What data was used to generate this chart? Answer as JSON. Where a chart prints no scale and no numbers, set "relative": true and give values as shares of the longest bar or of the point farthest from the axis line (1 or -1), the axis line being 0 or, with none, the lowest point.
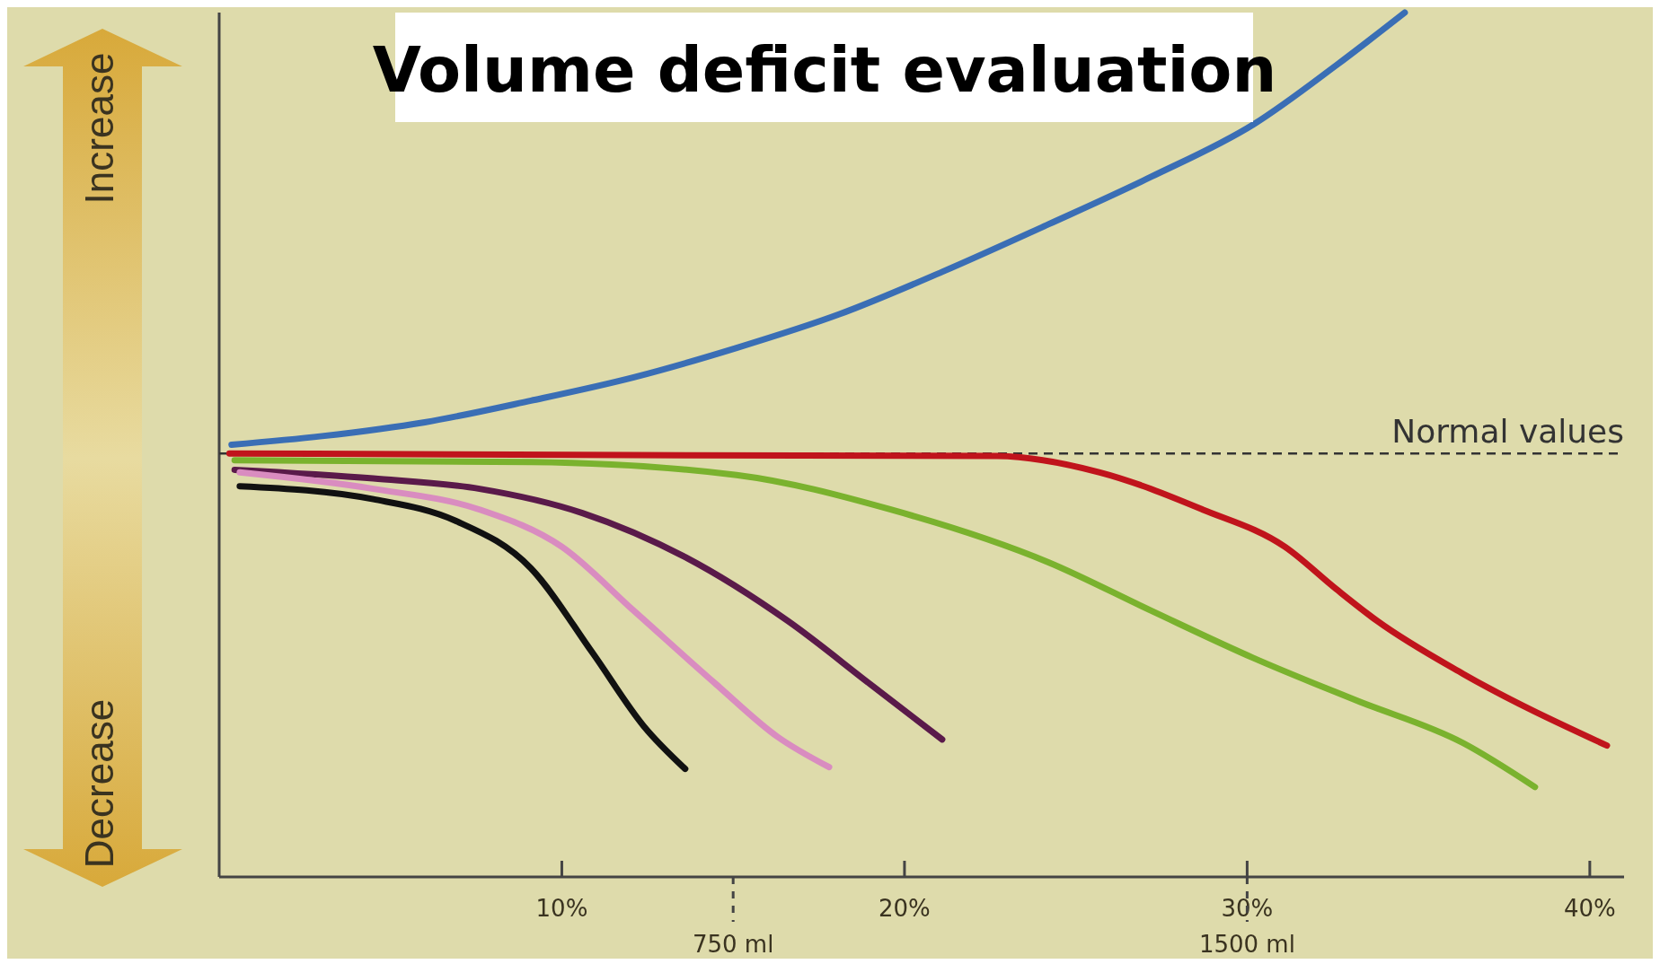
{
  "chart_data": {
    "type": "line",
    "title": "Volume deficit evaluation",
    "relative": true,
    "grid": false,
    "line_style": "solid",
    "xlim": [
      0,
      41
    ],
    "xticks": [
      {
        "value": 10,
        "label": "10%"
      },
      {
        "value": 20,
        "label": "20%"
      },
      {
        "value": 30,
        "label": "30%"
      },
      {
        "value": 40,
        "label": "40%"
      }
    ],
    "x2lim": [
      0,
      2050
    ],
    "x2ticks": [
      {
        "value": 750,
        "label": "750 ml"
      },
      {
        "value": 1500,
        "label": "1500 ml"
      }
    ],
    "annotations": [
      "Increase",
      "Decrease"
    ],
    "ref_lines": [
      {
        "axis": "y",
        "value": 0.49,
        "label": "Normal values",
        "color": "#333333",
        "line_style": "dashed"
      }
    ],
    "series": [
      {
        "color": "#3a6eb5",
        "x": [
          0.36,
          3.0,
          6.0,
          9.1,
          12.1,
          15.1,
          18.1,
          21.1,
          24.2,
          27.2,
          30.2,
          32.6,
          34.6
        ],
        "values": [
          0.5,
          0.51,
          0.526,
          0.551,
          0.578,
          0.612,
          0.651,
          0.7,
          0.755,
          0.81,
          0.871,
          0.939,
          1.0
        ]
      },
      {
        "color": "#c0141c",
        "x": [
          0.3,
          12.1,
          22.7,
          25.7,
          28.7,
          31.1,
          32.6,
          33.8,
          36.3,
          40.5
        ],
        "values": [
          0.49,
          0.488,
          0.487,
          0.468,
          0.425,
          0.382,
          0.333,
          0.296,
          0.235,
          0.152
        ]
      },
      {
        "color": "#7ab22e",
        "x": [
          0.45,
          9.1,
          15.1,
          19.6,
          24.2,
          27.2,
          30.2,
          33.2,
          36.3,
          38.4
        ],
        "values": [
          0.482,
          0.48,
          0.465,
          0.425,
          0.364,
          0.308,
          0.253,
          0.204,
          0.155,
          0.104
        ]
      },
      {
        "color": "#5a1a4a",
        "x": [
          0.45,
          4.5,
          7.6,
          10.6,
          13.6,
          16.6,
          19.0,
          21.1
        ],
        "values": [
          0.471,
          0.461,
          0.449,
          0.421,
          0.37,
          0.296,
          0.223,
          0.159
        ]
      },
      {
        "color": "#d98cc0",
        "x": [
          0.6,
          4.5,
          7.6,
          10.0,
          12.1,
          14.5,
          16.3,
          17.8
        ],
        "values": [
          0.468,
          0.449,
          0.425,
          0.382,
          0.308,
          0.223,
          0.162,
          0.127
        ]
      },
      {
        "color": "#111111",
        "x": [
          0.6,
          4.5,
          6.9,
          9.1,
          10.9,
          12.4,
          13.6
        ],
        "values": [
          0.452,
          0.437,
          0.412,
          0.357,
          0.259,
          0.174,
          0.125
        ]
      }
    ]
  }
}
